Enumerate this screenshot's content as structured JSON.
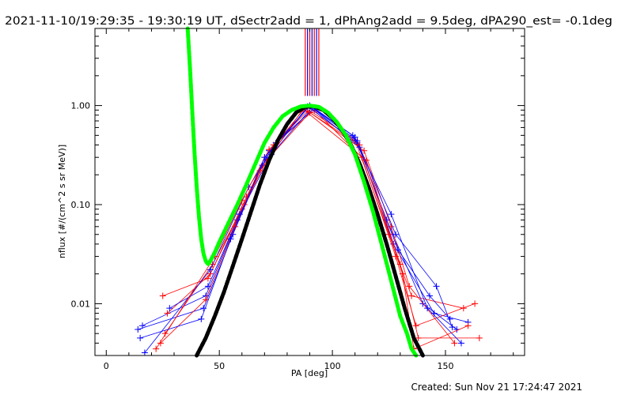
{
  "header": {
    "title": "2021-11-10/19:29:35 - 19:30:19 UT, dSectr2add = 1, dPhAng2add = 9.5deg, dPA290_est= -0.1deg"
  },
  "footer": {
    "created": "Created: Sun Nov 21 17:24:47 2021"
  },
  "colors": {
    "background": "#ffffff",
    "axes": "#000000",
    "red_series": "#ff0000",
    "blue_series": "#0000ff",
    "green_fit": "#00ff00",
    "black_fit": "#000000"
  },
  "chart_data": {
    "type": "line",
    "title": "2021-11-10/19:29:35 - 19:30:19 UT, dSectr2add = 1, dPhAng2add = 9.5deg, dPA290_est= -0.1deg",
    "xlabel": "PA [deg]",
    "ylabel": "nflux [#/(cm^2 s sr MeV)]",
    "xlim": [
      -5,
      185
    ],
    "ylim": [
      0.003,
      6
    ],
    "yscale": "log",
    "x_ticks": [
      0,
      50,
      100,
      150
    ],
    "x_tick_labels": [
      "0",
      "50",
      "100",
      "150"
    ],
    "y_ticks": [
      0.01,
      0.1,
      1.0
    ],
    "y_tick_labels": [
      "0.01",
      "0.10",
      "1.00"
    ],
    "grid": false,
    "legend": "none",
    "vertical_markers": [
      {
        "x": 88,
        "color": "#ff0000"
      },
      {
        "x": 89,
        "color": "#0000ff"
      },
      {
        "x": 90,
        "color": "#ff0000"
      },
      {
        "x": 91,
        "color": "#0000ff"
      },
      {
        "x": 92,
        "color": "#ff0000"
      },
      {
        "x": 93,
        "color": "#0000ff"
      },
      {
        "x": 94,
        "color": "#ff0000"
      }
    ],
    "series": [
      {
        "color": "#ff0000",
        "marker": "plus",
        "x": [
          25,
          45,
          60,
          70,
          88,
          110,
          125,
          135,
          158
        ],
        "y": [
          0.012,
          0.018,
          0.09,
          0.3,
          0.95,
          0.45,
          0.05,
          0.012,
          0.009
        ]
      },
      {
        "color": "#0000ff",
        "marker": "plus",
        "x": [
          16,
          44,
          58,
          72,
          90,
          112,
          127,
          145,
          160
        ],
        "y": [
          0.006,
          0.012,
          0.07,
          0.35,
          1.0,
          0.38,
          0.04,
          0.008,
          0.0065
        ]
      },
      {
        "color": "#ff0000",
        "marker": "plus",
        "x": [
          27,
          46,
          62,
          74,
          92,
          113,
          128,
          137,
          163
        ],
        "y": [
          0.008,
          0.02,
          0.12,
          0.4,
          0.9,
          0.3,
          0.03,
          0.006,
          0.01
        ]
      },
      {
        "color": "#0000ff",
        "marker": "plus",
        "x": [
          14,
          43,
          56,
          69,
          89,
          111,
          124,
          140,
          155
        ],
        "y": [
          0.0055,
          0.009,
          0.05,
          0.25,
          0.98,
          0.42,
          0.07,
          0.01,
          0.0055
        ]
      },
      {
        "color": "#ff0000",
        "marker": "plus",
        "x": [
          26,
          47,
          61,
          71,
          90,
          114,
          126,
          134,
          154
        ],
        "y": [
          0.005,
          0.025,
          0.1,
          0.28,
          0.85,
          0.35,
          0.06,
          0.015,
          0.004
        ]
      },
      {
        "color": "#0000ff",
        "marker": "plus",
        "x": [
          28,
          45,
          59,
          73,
          91,
          110,
          129,
          143,
          152
        ],
        "y": [
          0.009,
          0.015,
          0.08,
          0.32,
          0.96,
          0.48,
          0.035,
          0.012,
          0.007
        ]
      },
      {
        "color": "#ff0000",
        "marker": "plus",
        "x": [
          24,
          44,
          57,
          68,
          87,
          115,
          130,
          138,
          165
        ],
        "y": [
          0.004,
          0.011,
          0.06,
          0.22,
          0.92,
          0.28,
          0.025,
          0.0045,
          0.0045
        ]
      },
      {
        "color": "#0000ff",
        "marker": "plus",
        "x": [
          17,
          46,
          63,
          75,
          92,
          109,
          126,
          142,
          157
        ],
        "y": [
          0.0032,
          0.022,
          0.15,
          0.42,
          0.94,
          0.5,
          0.08,
          0.009,
          0.004
        ]
      },
      {
        "color": "#ff0000",
        "marker": "plus",
        "x": [
          22,
          48,
          60,
          72,
          89,
          112,
          131,
          136,
          160
        ],
        "y": [
          0.0035,
          0.03,
          0.11,
          0.36,
          0.88,
          0.4,
          0.02,
          0.0035,
          0.006
        ]
      },
      {
        "color": "#0000ff",
        "marker": "plus",
        "x": [
          15,
          42,
          55,
          70,
          90,
          111,
          128,
          146,
          153
        ],
        "y": [
          0.0045,
          0.007,
          0.045,
          0.3,
          0.99,
          0.44,
          0.05,
          0.015,
          0.0058
        ]
      }
    ],
    "fits": [
      {
        "name": "",
        "color": "#00ff00",
        "style": "thick-dashed",
        "x": [
          36,
          37,
          38,
          39,
          40,
          41,
          42,
          43,
          44,
          45,
          46,
          48,
          50,
          54,
          58,
          62,
          66,
          70,
          74,
          78,
          82,
          86,
          90,
          94,
          98,
          102,
          106,
          110,
          114,
          118,
          122,
          126,
          130,
          133,
          135,
          137
        ],
        "y": [
          6.0,
          2.5,
          0.9,
          0.35,
          0.15,
          0.075,
          0.045,
          0.032,
          0.027,
          0.025,
          0.027,
          0.033,
          0.042,
          0.065,
          0.1,
          0.16,
          0.26,
          0.42,
          0.6,
          0.78,
          0.9,
          0.98,
          1.0,
          0.97,
          0.85,
          0.68,
          0.5,
          0.32,
          0.17,
          0.085,
          0.038,
          0.017,
          0.0075,
          0.005,
          0.0035,
          0.003
        ]
      },
      {
        "name": "",
        "color": "#000000",
        "style": "thick-dashed",
        "x": [
          40,
          44,
          48,
          52,
          56,
          60,
          64,
          68,
          72,
          76,
          80,
          84,
          88,
          92,
          96,
          100,
          104,
          108,
          112,
          116,
          120,
          124,
          128,
          132,
          136,
          140
        ],
        "y": [
          0.003,
          0.0045,
          0.0075,
          0.013,
          0.024,
          0.045,
          0.085,
          0.16,
          0.28,
          0.45,
          0.65,
          0.85,
          0.97,
          0.98,
          0.9,
          0.75,
          0.58,
          0.41,
          0.26,
          0.15,
          0.08,
          0.04,
          0.019,
          0.009,
          0.0045,
          0.003
        ]
      }
    ]
  }
}
